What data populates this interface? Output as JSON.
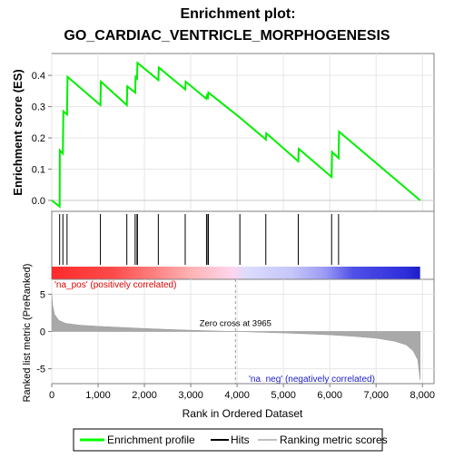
{
  "chart_data": {
    "type": "line",
    "title_line1": "Enrichment plot:",
    "title_line2": "GO_CARDIAC_VENTRICLE_MORPHOGENESIS",
    "xlabel": "Rank in Ordered Dataset",
    "es_panel": {
      "ylabel": "Enrichment score (ES)",
      "ylim": [
        -0.035,
        0.47
      ],
      "yticks": [
        0.0,
        0.1,
        0.2,
        0.3,
        0.4
      ],
      "ytick_labels": [
        "0.0",
        "0.1",
        "0.2",
        "0.3",
        "0.4"
      ],
      "series": [
        {
          "name": "Enrichment profile",
          "color": "#00ff00",
          "points": [
            [
              0,
              0.0
            ],
            [
              170,
              -0.02
            ],
            [
              175,
              0.16
            ],
            [
              240,
              0.15
            ],
            [
              250,
              0.285
            ],
            [
              330,
              0.275
            ],
            [
              340,
              0.395
            ],
            [
              1050,
              0.305
            ],
            [
              1060,
              0.38
            ],
            [
              1620,
              0.305
            ],
            [
              1630,
              0.365
            ],
            [
              1800,
              0.345
            ],
            [
              1810,
              0.395
            ],
            [
              1840,
              0.39
            ],
            [
              1850,
              0.44
            ],
            [
              2300,
              0.385
            ],
            [
              2310,
              0.425
            ],
            [
              2880,
              0.355
            ],
            [
              2890,
              0.38
            ],
            [
              3340,
              0.325
            ],
            [
              3350,
              0.335
            ],
            [
              3370,
              0.33
            ],
            [
              3380,
              0.345
            ],
            [
              4060,
              0.265
            ],
            [
              4620,
              0.195
            ],
            [
              4630,
              0.215
            ],
            [
              5320,
              0.125
            ],
            [
              5330,
              0.165
            ],
            [
              6040,
              0.075
            ],
            [
              6050,
              0.155
            ],
            [
              6190,
              0.135
            ],
            [
              6200,
              0.22
            ],
            [
              7950,
              0.0
            ]
          ]
        }
      ]
    },
    "hits": [
      170,
      240,
      330,
      1050,
      1620,
      1800,
      1840,
      1850,
      2300,
      2880,
      3340,
      3370,
      3380,
      4060,
      4620,
      5320,
      6040,
      6190
    ],
    "color_bar": {
      "xrange": [
        0,
        7950
      ],
      "stops": [
        {
          "at": 0,
          "color": "#ff2a2a"
        },
        {
          "at": 1300,
          "color": "#ff4a4a"
        },
        {
          "at": 2200,
          "color": "#ff8080"
        },
        {
          "at": 3000,
          "color": "#ffb3b3"
        },
        {
          "at": 3900,
          "color": "#ffd6ee"
        },
        {
          "at": 4200,
          "color": "#dcdcff"
        },
        {
          "at": 5200,
          "color": "#c5c5fa"
        },
        {
          "at": 5900,
          "color": "#9a9af5"
        },
        {
          "at": 6500,
          "color": "#5050e8"
        },
        {
          "at": 7600,
          "color": "#2f2fdc"
        },
        {
          "at": 7950,
          "color": "#1e1ec8"
        }
      ]
    },
    "metric_panel": {
      "ylabel": "Ranked list metric (PreRanked)",
      "ylim": [
        -7.0,
        7.0
      ],
      "yticks": [
        -5,
        0,
        5
      ],
      "ytick_labels": [
        "-5",
        "0",
        "5"
      ],
      "metric_curve": [
        [
          0,
          5.0
        ],
        [
          20,
          3.5
        ],
        [
          60,
          2.3
        ],
        [
          150,
          1.5
        ],
        [
          300,
          1.1
        ],
        [
          600,
          0.85
        ],
        [
          1000,
          0.7
        ],
        [
          1500,
          0.55
        ],
        [
          2000,
          0.4
        ],
        [
          2500,
          0.28
        ],
        [
          3000,
          0.17
        ],
        [
          3500,
          0.07
        ],
        [
          3965,
          0.0
        ],
        [
          4500,
          -0.1
        ],
        [
          5000,
          -0.2
        ],
        [
          5500,
          -0.32
        ],
        [
          6000,
          -0.45
        ],
        [
          6500,
          -0.65
        ],
        [
          7000,
          -0.9
        ],
        [
          7400,
          -1.3
        ],
        [
          7650,
          -1.8
        ],
        [
          7800,
          -2.6
        ],
        [
          7900,
          -3.8
        ],
        [
          7950,
          -6.5
        ]
      ],
      "zero_cross_label": "Zero cross at 3965",
      "zero_cross": 3965,
      "pos_label": "'na_pos' (positively correlated)",
      "neg_label": "'na_neg' (negatively correlated)"
    },
    "xlim": [
      0,
      8250
    ],
    "xticks": [
      0,
      1000,
      2000,
      3000,
      4000,
      5000,
      6000,
      7000,
      8000
    ],
    "xtick_labels": [
      "0",
      "1,000",
      "2,000",
      "3,000",
      "4,000",
      "5,000",
      "6,000",
      "7,000",
      "8,000"
    ],
    "legend": {
      "placement": "bottom",
      "entries": [
        {
          "label": "Enrichment profile",
          "color": "#00ff00",
          "kind": "thick-line"
        },
        {
          "label": "Hits",
          "color": "#000000",
          "kind": "thin-line"
        },
        {
          "label": "Ranking metric scores",
          "color": "#c0c0c0",
          "kind": "thin-line"
        }
      ]
    }
  }
}
